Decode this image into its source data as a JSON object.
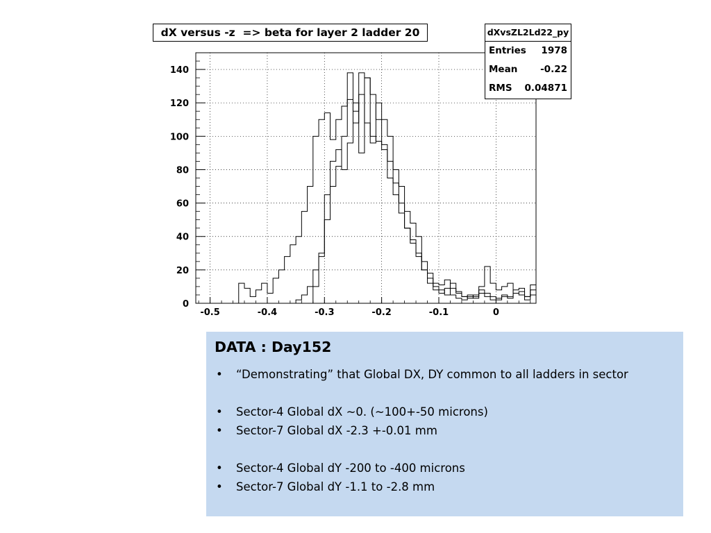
{
  "stats": {
    "name": "dXvsZL2Ld22_py",
    "rows": [
      {
        "label": "Entries",
        "value": "1978"
      },
      {
        "label": "Mean",
        "value": "-0.22"
      },
      {
        "label": "RMS",
        "value": "0.04871"
      }
    ]
  },
  "chart_data": {
    "type": "histogram",
    "title": "dX versus -z  => beta for layer 2 ladder 20",
    "xlabel": "",
    "ylabel": "",
    "xlim": [
      -0.525,
      0.07
    ],
    "ylim": [
      0,
      150
    ],
    "grid": true,
    "style": "step",
    "xticks": [
      -0.5,
      -0.4,
      -0.3,
      -0.2,
      -0.1,
      0
    ],
    "xtick_labels": [
      "-0.5",
      "-0.4",
      "-0.3",
      "-0.2",
      "-0.1",
      "0"
    ],
    "yticks": [
      0,
      20,
      40,
      60,
      80,
      100,
      120,
      140
    ],
    "ytick_labels": [
      "0",
      "20",
      "40",
      "60",
      "80",
      "100",
      "120",
      "140"
    ],
    "bin_width": 0.01,
    "series": [
      {
        "x": [
          -0.52,
          -0.51,
          -0.5,
          -0.49,
          -0.48,
          -0.47,
          -0.46,
          -0.45,
          -0.44,
          -0.43,
          -0.42,
          -0.41,
          -0.4,
          -0.39,
          -0.38,
          -0.37,
          -0.36,
          -0.35,
          -0.34,
          -0.33,
          -0.32,
          -0.31,
          -0.3,
          -0.29,
          -0.28,
          -0.27,
          -0.26,
          -0.25,
          -0.24,
          -0.23,
          -0.22,
          -0.21,
          -0.2,
          -0.19,
          -0.18,
          -0.17,
          -0.16,
          -0.15,
          -0.14,
          -0.13,
          -0.12,
          -0.11,
          -0.1,
          -0.09,
          -0.08,
          -0.07,
          -0.06,
          -0.05,
          -0.04,
          -0.03,
          -0.02,
          -0.01,
          0.0,
          0.01,
          0.02,
          0.03,
          0.04,
          0.05,
          0.06
        ],
        "values": [
          0,
          0,
          0,
          0,
          0,
          0,
          0,
          12,
          9,
          4,
          8,
          12,
          6,
          15,
          20,
          28,
          35,
          40,
          55,
          70,
          100,
          110,
          114,
          98,
          110,
          118,
          138,
          115,
          125,
          108,
          100,
          97,
          92,
          75,
          65,
          54,
          45,
          36,
          28,
          20,
          18,
          12,
          11,
          14,
          9,
          6,
          4,
          5,
          4,
          8,
          6,
          4,
          3,
          5,
          4,
          8,
          9,
          4,
          5
        ]
      },
      {
        "x": [
          -0.52,
          -0.51,
          -0.5,
          -0.49,
          -0.48,
          -0.47,
          -0.46,
          -0.45,
          -0.44,
          -0.43,
          -0.42,
          -0.41,
          -0.4,
          -0.39,
          -0.38,
          -0.37,
          -0.36,
          -0.35,
          -0.34,
          -0.33,
          -0.32,
          -0.31,
          -0.3,
          -0.29,
          -0.28,
          -0.27,
          -0.26,
          -0.25,
          -0.24,
          -0.23,
          -0.22,
          -0.21,
          -0.2,
          -0.19,
          -0.18,
          -0.17,
          -0.16,
          -0.15,
          -0.14,
          -0.13,
          -0.12,
          -0.11,
          -0.1,
          -0.09,
          -0.08,
          -0.07,
          -0.06,
          -0.05,
          -0.04,
          -0.03,
          -0.02,
          -0.01,
          0.0,
          0.01,
          0.02,
          0.03,
          0.04,
          0.05,
          0.06
        ],
        "values": [
          0,
          0,
          0,
          0,
          0,
          0,
          0,
          0,
          0,
          0,
          0,
          0,
          0,
          0,
          0,
          0,
          0,
          2,
          5,
          10,
          20,
          30,
          65,
          85,
          92,
          80,
          96,
          120,
          90,
          135,
          125,
          110,
          95,
          85,
          72,
          60,
          45,
          38,
          30,
          20,
          12,
          8,
          6,
          9,
          5,
          3,
          2,
          4,
          3,
          6,
          4,
          2,
          2,
          4,
          3,
          6,
          5,
          2,
          8
        ]
      },
      {
        "x": [
          -0.52,
          -0.51,
          -0.5,
          -0.49,
          -0.48,
          -0.47,
          -0.46,
          -0.45,
          -0.44,
          -0.43,
          -0.42,
          -0.41,
          -0.4,
          -0.39,
          -0.38,
          -0.37,
          -0.36,
          -0.35,
          -0.34,
          -0.33,
          -0.32,
          -0.31,
          -0.3,
          -0.29,
          -0.28,
          -0.27,
          -0.26,
          -0.25,
          -0.24,
          -0.23,
          -0.22,
          -0.21,
          -0.2,
          -0.19,
          -0.18,
          -0.17,
          -0.16,
          -0.15,
          -0.14,
          -0.13,
          -0.12,
          -0.11,
          -0.1,
          -0.09,
          -0.08,
          -0.07,
          -0.06,
          -0.05,
          -0.04,
          -0.03,
          -0.02,
          -0.01,
          0.0,
          0.01,
          0.02,
          0.03,
          0.04,
          0.05,
          0.06
        ],
        "values": [
          0,
          0,
          0,
          0,
          0,
          0,
          0,
          0,
          0,
          0,
          0,
          0,
          0,
          0,
          0,
          0,
          0,
          0,
          0,
          0,
          10,
          28,
          50,
          70,
          82,
          100,
          122,
          108,
          138,
          135,
          96,
          120,
          110,
          100,
          80,
          70,
          55,
          48,
          40,
          25,
          15,
          10,
          8,
          5,
          12,
          7,
          4,
          3,
          5,
          10,
          22,
          12,
          8,
          10,
          12,
          6,
          7,
          4,
          11
        ]
      }
    ]
  },
  "info": {
    "title": "DATA : Day152",
    "bullets": [
      "“Demonstrating” that Global DX, DY common to all ladders in sector",
      "Sector-4 Global dX ~0. (~100+-50 microns)",
      "Sector-7 Global dX  -2.3 +-0.01 mm",
      "Sector-4 Global dY -200 to -400 microns",
      "Sector-7 Global dY  -1.1 to -2.8 mm"
    ]
  }
}
